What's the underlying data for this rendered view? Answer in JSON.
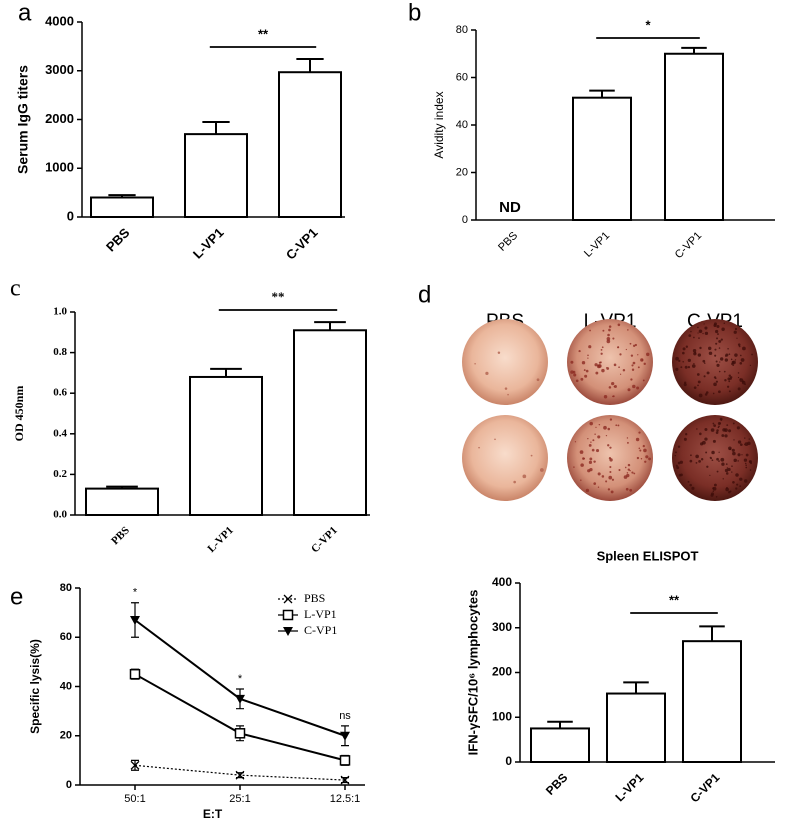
{
  "chart_data": [
    {
      "type": "bar",
      "panel": "a",
      "ylabel": "Serum IgG titers",
      "categories": [
        "PBS",
        "L-VP1",
        "C-VP1"
      ],
      "values": [
        400,
        1700,
        2970
      ],
      "errors": [
        50,
        250,
        270
      ],
      "color": "#ffffff",
      "ylim": [
        0,
        4000
      ],
      "yticks": [
        0,
        1000,
        2000,
        3000,
        4000
      ],
      "significance": "**"
    },
    {
      "type": "bar",
      "panel": "b",
      "ylabel": "Avidity index",
      "categories": [
        "PBS",
        "L-VP1",
        "C-VP1"
      ],
      "values": [
        null,
        51.5,
        70
      ],
      "value_labels": [
        "ND",
        null,
        null
      ],
      "errors": [
        null,
        3,
        2.5
      ],
      "color": "#ffffff",
      "ylim": [
        0,
        80
      ],
      "yticks": [
        0,
        20,
        40,
        60,
        80
      ],
      "significance": "*"
    },
    {
      "type": "bar",
      "panel": "c",
      "ylabel": "OD 450nm",
      "categories": [
        "PBS",
        "L-VP1",
        "C-VP1"
      ],
      "values": [
        0.13,
        0.68,
        0.91
      ],
      "errors": [
        0.01,
        0.04,
        0.04
      ],
      "color": "#ffffff",
      "ylim": [
        0,
        1
      ],
      "yticks": [
        {
          "value": 0,
          "label": "0.0"
        },
        0.2,
        0.4,
        0.6,
        0.8,
        {
          "value": 1,
          "label": "1.0"
        }
      ],
      "significance": "**"
    },
    {
      "type": "bar",
      "title": "Spleen ELISPOT",
      "ylabel": "IFN-γSFC/10⁶ lymphocytes",
      "categories": [
        "PBS",
        "L-VP1",
        "C-VP1"
      ],
      "values": [
        75,
        153,
        270
      ],
      "errors": [
        15,
        25,
        33
      ],
      "color": "#ffffff",
      "ylim": [
        0,
        400
      ],
      "yticks": [
        0,
        100,
        200,
        300,
        400
      ],
      "significance": "**"
    },
    {
      "type": "line",
      "panel": "e",
      "xlabel": "E:T",
      "ylabel": "Specific lysis(%)",
      "categories": [
        "50:1",
        "25:1",
        "12.5:1"
      ],
      "ylim": [
        0,
        80
      ],
      "yticks": [
        0,
        20,
        40,
        60,
        80
      ],
      "legend": "top-right",
      "series": [
        {
          "name": "PBS",
          "color": "#000000",
          "marker": "x",
          "dash": "dotted",
          "values": [
            8,
            4,
            2
          ],
          "errors": [
            2,
            1,
            1
          ]
        },
        {
          "name": "L-VP1",
          "color": "#000000",
          "marker": "square",
          "dash": "solid",
          "values": [
            45,
            21,
            10
          ],
          "errors": [
            2,
            3,
            2
          ]
        },
        {
          "name": "C-VP1",
          "color": "#000000",
          "marker": "triangle-down",
          "dash": "solid",
          "values": [
            67,
            35,
            20
          ],
          "errors": [
            7,
            4,
            4
          ],
          "point_labels": [
            "*",
            "*",
            "ns"
          ]
        }
      ]
    }
  ],
  "well_images": {
    "panel": "d",
    "labels": [
      "PBS",
      "L-VP1",
      "C-VP1"
    ]
  }
}
